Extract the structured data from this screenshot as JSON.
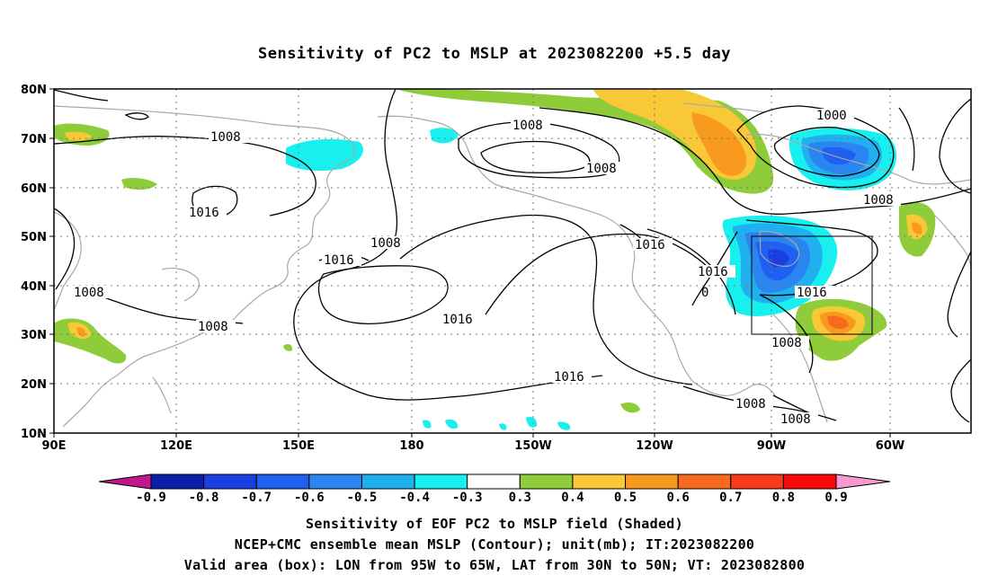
{
  "title": "Sensitivity of PC2 to MSLP at 2023082200 +5.5 day",
  "lat_labels": [
    "80N",
    "70N",
    "60N",
    "50N",
    "40N",
    "30N",
    "20N",
    "10N"
  ],
  "lon_labels": [
    "90E",
    "120E",
    "150E",
    "180",
    "150W",
    "120W",
    "90W",
    "60W"
  ],
  "contour_labels": {
    "c1": "1008",
    "c2": "1016",
    "c3": "1008",
    "c4": "1008",
    "c5": "1008",
    "c6": "1016",
    "c7": "1008",
    "c8": "1016",
    "c9": "1016",
    "c10": "1016",
    "c11": "1016",
    "c12": "1016",
    "c13": "1000",
    "c14": "1008",
    "c15": "1008",
    "c16": "1008",
    "c17": "1008",
    "c18": "0"
  },
  "colorbar": {
    "labels": [
      "-0.9",
      "-0.8",
      "-0.7",
      "-0.6",
      "-0.5",
      "-0.4",
      "-0.3",
      "0.3",
      "0.4",
      "0.5",
      "0.6",
      "0.7",
      "0.8",
      "0.9"
    ],
    "colors": [
      "#0b1ea8",
      "#1a3ee0",
      "#2060f0",
      "#2b85f0",
      "#20b0f0",
      "#18f0f0",
      "#ffffff",
      "#8fcc3a",
      "#f8c836",
      "#f89a1e",
      "#f86a20",
      "#f83a18",
      "#f80808"
    ],
    "left_end_color": "#c0188c",
    "right_end_color": "#f89ad0"
  },
  "captions": {
    "line1": "Sensitivity of EOF PC2 to MSLP field (Shaded)",
    "line2": "NCEP+CMC ensemble mean MSLP (Contour); unit(mb); IT:2023082200",
    "line3": "Valid area (box): LON from 95W to 65W, LAT from 30N to 50N; VT: 2023082800"
  }
}
